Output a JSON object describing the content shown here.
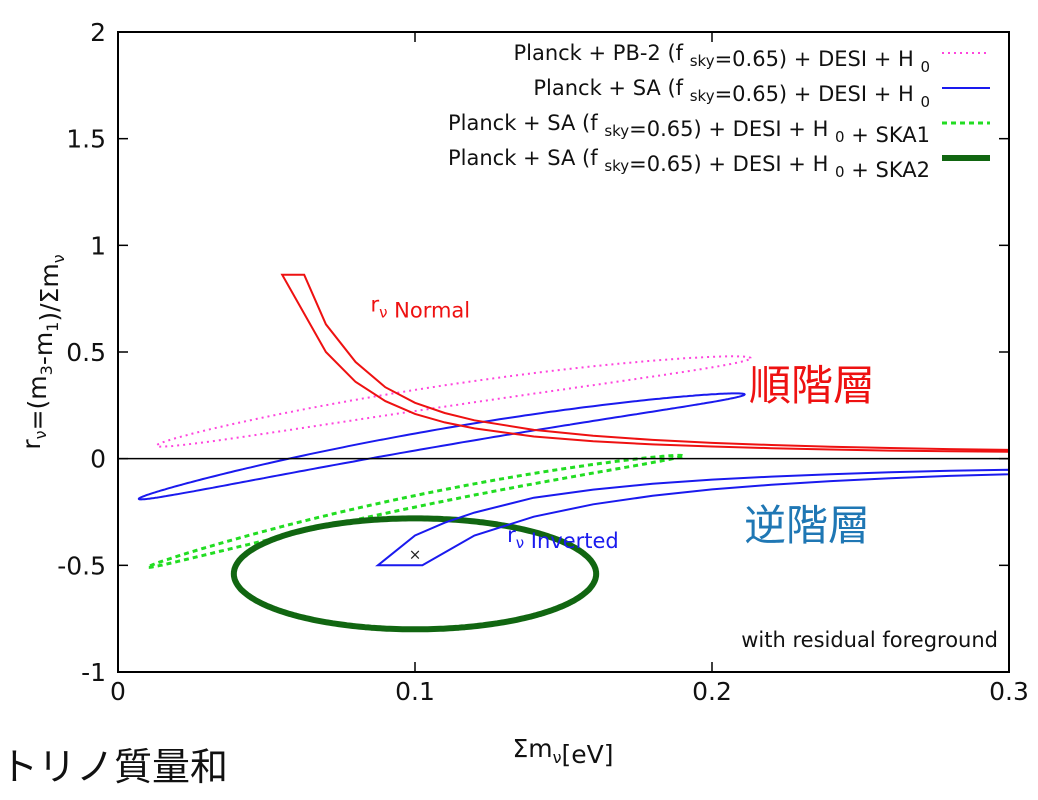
{
  "chart_data": {
    "type": "line",
    "xlabel": {
      "main": "Σm",
      "sub": "ν",
      "rest": "[eV]"
    },
    "ylabel": {
      "parts": [
        {
          "t": "r",
          "s": false
        },
        {
          "t": "ν",
          "s": true
        },
        {
          "t": "=(m",
          "s": false
        },
        {
          "t": "3",
          "s": true
        },
        {
          "t": "-m",
          "s": false
        },
        {
          "t": "1",
          "s": true
        },
        {
          "t": ")/Σm",
          "s": false
        },
        {
          "t": "ν",
          "s": true
        }
      ]
    },
    "xlim": [
      0,
      0.3
    ],
    "ylim": [
      -1,
      2
    ],
    "x_ticks": [
      {
        "v": 0,
        "label": "0"
      },
      {
        "v": 0.1,
        "label": "0.1"
      },
      {
        "v": 0.2,
        "label": "0.2"
      },
      {
        "v": 0.3,
        "label": "0.3"
      }
    ],
    "y_ticks": [
      {
        "v": -1,
        "label": "-1"
      },
      {
        "v": -0.5,
        "label": "-0.5"
      },
      {
        "v": 0,
        "label": "0"
      },
      {
        "v": 0.5,
        "label": "0.5"
      },
      {
        "v": 1,
        "label": "1"
      },
      {
        "v": 1.5,
        "label": "1.5"
      },
      {
        "v": 2,
        "label": "2"
      }
    ],
    "zero_line": 0,
    "grid": false,
    "legend_position": "top-right",
    "series": [
      {
        "name": "Planck + PB-2 (f sky=0.65) + DESI + H 0",
        "legend_parts": [
          {
            "t": "Planck + PB-2 (f ",
            "s": false
          },
          {
            "t": "sky",
            "s": true
          },
          {
            "t": "=0.65) + DESI + H ",
            "s": false
          },
          {
            "t": "0",
            "s": true
          }
        ],
        "color": "#ff44dd",
        "style": "dotted",
        "width": 2,
        "ellipse": {
          "center": [
            0.113,
            0.3
          ],
          "semi_axes": [
            0.1,
            0.05
          ],
          "y_coupling": 2.05,
          "y_curvature": 3.4
        }
      },
      {
        "name": "Planck + SA (f sky=0.65) + DESI + H 0",
        "legend_parts": [
          {
            "t": "Planck + SA (f ",
            "s": false
          },
          {
            "t": "sky",
            "s": true
          },
          {
            "t": "=0.65) + DESI + H ",
            "s": false
          },
          {
            "t": "0",
            "s": true
          }
        ],
        "color": "#1a1aee",
        "style": "solid",
        "width": 2,
        "ellipse": {
          "center": [
            0.109,
            0.1
          ],
          "semi_axes": [
            0.102,
            0.04
          ],
          "y_coupling": 2.4,
          "y_curvature": 4.2
        }
      },
      {
        "name": "Planck + SA (f sky=0.65) + DESI + H 0 + SKA1",
        "legend_parts": [
          {
            "t": "Planck + SA (f ",
            "s": false
          },
          {
            "t": "sky",
            "s": true
          },
          {
            "t": "=0.65) + DESI + H ",
            "s": false
          },
          {
            "t": "0",
            "s": true
          },
          {
            "t": " + SKA1",
            "s": false
          }
        ],
        "color": "#22dd22",
        "style": "dashed",
        "width": 3,
        "ellipse": {
          "center": [
            0.1,
            -0.2
          ],
          "semi_axes": [
            0.09,
            0.027
          ],
          "y_coupling": 2.9,
          "y_curvature": 5.9
        }
      },
      {
        "name": "Planck + SA (f sky=0.65) + DESI + H 0 + SKA2",
        "legend_parts": [
          {
            "t": "Planck + SA (f ",
            "s": false
          },
          {
            "t": "sky",
            "s": true
          },
          {
            "t": "=0.65) + DESI + H ",
            "s": false
          },
          {
            "t": "0",
            "s": true
          },
          {
            "t": " + SKA2",
            "s": false
          }
        ],
        "color": "#116611",
        "style": "solid",
        "width": 6,
        "ellipse": {
          "center": [
            0.1,
            -0.54
          ],
          "semi_axes": [
            0.061,
            0.26
          ],
          "y_coupling": 0,
          "y_curvature": 0
        }
      }
    ],
    "hierarchy_bands": [
      {
        "name": "normal",
        "color": "#ee1111",
        "width": 2,
        "upper": [
          [
            0.0627,
            0.862
          ],
          [
            0.07,
            0.63
          ],
          [
            0.08,
            0.453
          ],
          [
            0.09,
            0.335
          ],
          [
            0.1,
            0.262
          ],
          [
            0.11,
            0.214
          ],
          [
            0.12,
            0.18
          ],
          [
            0.14,
            0.135
          ],
          [
            0.16,
            0.107
          ],
          [
            0.18,
            0.088
          ],
          [
            0.2,
            0.074
          ],
          [
            0.22,
            0.064
          ],
          [
            0.24,
            0.056
          ],
          [
            0.26,
            0.05
          ],
          [
            0.28,
            0.045
          ],
          [
            0.3,
            0.041
          ]
        ],
        "lower": [
          [
            0.0553,
            0.862
          ],
          [
            0.07,
            0.5
          ],
          [
            0.08,
            0.36
          ],
          [
            0.09,
            0.27
          ],
          [
            0.1,
            0.21
          ],
          [
            0.11,
            0.17
          ],
          [
            0.12,
            0.142
          ],
          [
            0.14,
            0.104
          ],
          [
            0.16,
            0.082
          ],
          [
            0.18,
            0.067
          ],
          [
            0.2,
            0.057
          ],
          [
            0.22,
            0.049
          ],
          [
            0.24,
            0.043
          ],
          [
            0.26,
            0.038
          ],
          [
            0.28,
            0.035
          ],
          [
            0.3,
            0.032
          ]
        ]
      },
      {
        "name": "inverted",
        "color": "#1a1aee",
        "width": 2,
        "upper": [
          [
            0.0875,
            -0.5
          ],
          [
            0.1,
            -0.36
          ],
          [
            0.11,
            -0.3
          ],
          [
            0.12,
            -0.253
          ],
          [
            0.14,
            -0.183
          ],
          [
            0.16,
            -0.145
          ],
          [
            0.18,
            -0.118
          ],
          [
            0.2,
            -0.098
          ],
          [
            0.22,
            -0.084
          ],
          [
            0.24,
            -0.073
          ],
          [
            0.26,
            -0.064
          ],
          [
            0.28,
            -0.057
          ],
          [
            0.3,
            -0.052
          ]
        ],
        "lower": [
          [
            0.1025,
            -0.5
          ],
          [
            0.11,
            -0.44
          ],
          [
            0.12,
            -0.36
          ],
          [
            0.14,
            -0.272
          ],
          [
            0.16,
            -0.214
          ],
          [
            0.18,
            -0.174
          ],
          [
            0.2,
            -0.144
          ],
          [
            0.22,
            -0.122
          ],
          [
            0.24,
            -0.105
          ],
          [
            0.26,
            -0.092
          ],
          [
            0.28,
            -0.081
          ],
          [
            0.3,
            -0.073
          ]
        ]
      }
    ],
    "marker": {
      "x": 0.1,
      "y": -0.45,
      "label": "×"
    },
    "annotations": {
      "r_normal": {
        "x": 0.085,
        "y": 0.69,
        "color": "#ee1111",
        "parts": [
          {
            "t": "r",
            "s": false
          },
          {
            "t": "ν",
            "s": true
          },
          {
            "t": " Normal",
            "s": false
          }
        ]
      },
      "r_inverted": {
        "x": 0.131,
        "y": -0.39,
        "color": "#1a1aee",
        "parts": [
          {
            "t": "r",
            "s": false
          },
          {
            "t": "ν",
            "s": true
          },
          {
            "t": " Inverted",
            "s": false
          }
        ]
      },
      "foreground": {
        "text": "with residual foreground"
      }
    },
    "labels": {
      "normal_hierarchy": {
        "text": "順階層",
        "color": "#ee1111"
      },
      "inverted_hierarchy": {
        "text": "逆階層",
        "color": "#1f77b4"
      },
      "neutrino_mass_sum": {
        "text": "トリノ質量和"
      }
    }
  }
}
